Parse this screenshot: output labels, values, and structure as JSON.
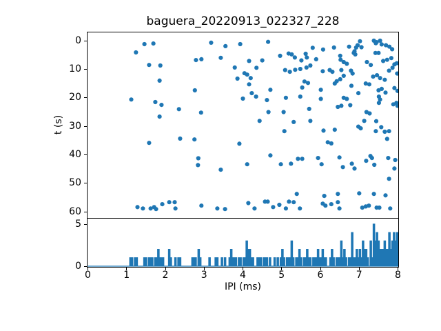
{
  "figure": {
    "title": "baguera_20220913_022327_228",
    "background_color": "#ffffff",
    "accent_color": "#1f77b4"
  },
  "chart_data": [
    {
      "type": "scatter",
      "title": "baguera_20220913_022327_228",
      "xlabel": "IPI (ms)",
      "ylabel": "t (s)",
      "xlim": [
        0,
        8
      ],
      "ylim_top_to_bottom": [
        -2.9,
        62.1
      ],
      "y_axis_inverted": true,
      "x_ticks": [
        0,
        1,
        2,
        3,
        4,
        5,
        6,
        7,
        8
      ],
      "x_tick_labels_shown": false,
      "y_ticks": [
        0,
        10,
        20,
        30,
        40,
        50,
        60
      ],
      "grid": false,
      "legend": "none",
      "marker": "dot",
      "marker_color": "#1f77b4",
      "points_x_is_ipi_ms_y_is_t_s": true,
      "points": [
        [
          1.46,
          1.2
        ],
        [
          1.69,
          1.0
        ],
        [
          3.18,
          0.7
        ],
        [
          3.55,
          1.9
        ],
        [
          3.93,
          1.2
        ],
        [
          1.24,
          4.1
        ],
        [
          3.43,
          6.0
        ],
        [
          2.93,
          6.5
        ],
        [
          2.79,
          6.8
        ],
        [
          1.58,
          8.5
        ],
        [
          1.87,
          8.7
        ],
        [
          3.79,
          9.4
        ],
        [
          4.04,
          11.4
        ],
        [
          3.86,
          13.3
        ],
        [
          1.85,
          14.0
        ],
        [
          2.76,
          17.4
        ],
        [
          4.0,
          20.3
        ],
        [
          1.12,
          20.6
        ],
        [
          1.74,
          21.5
        ],
        [
          1.9,
          22.5
        ],
        [
          2.35,
          24.0
        ],
        [
          2.92,
          25.2
        ],
        [
          1.85,
          26.6
        ],
        [
          4.65,
          0.4
        ],
        [
          5.8,
          2.5
        ],
        [
          6.07,
          3.1
        ],
        [
          6.35,
          2.4
        ],
        [
          5.18,
          4.5
        ],
        [
          5.26,
          4.8
        ],
        [
          4.96,
          5.3
        ],
        [
          5.34,
          5.9
        ],
        [
          5.62,
          4.6
        ],
        [
          5.65,
          5.9
        ],
        [
          5.51,
          6.9
        ],
        [
          5.89,
          6.5
        ],
        [
          6.52,
          6.7
        ],
        [
          6.6,
          7.5
        ],
        [
          6.51,
          5.3
        ],
        [
          4.16,
          7.1
        ],
        [
          4.5,
          6.9
        ],
        [
          4.35,
          9.5
        ],
        [
          5.09,
          10.3
        ],
        [
          5.21,
          10.9
        ],
        [
          5.35,
          10.2
        ],
        [
          5.48,
          9.9
        ],
        [
          5.64,
          9.4
        ],
        [
          5.74,
          8.7
        ],
        [
          6.06,
          10.7
        ],
        [
          6.24,
          10.3
        ],
        [
          6.31,
          10.9
        ],
        [
          6.54,
          10.3
        ],
        [
          4.11,
          11.9
        ],
        [
          4.2,
          13.1
        ],
        [
          6.42,
          14.2
        ],
        [
          6.51,
          13.5
        ],
        [
          6.6,
          12.3
        ],
        [
          5.59,
          14.3
        ],
        [
          5.68,
          14.8
        ],
        [
          4.16,
          15.3
        ],
        [
          4.71,
          17.2
        ],
        [
          4.23,
          18.4
        ],
        [
          4.34,
          19.6
        ],
        [
          4.62,
          20.8
        ],
        [
          5.53,
          16.4
        ],
        [
          6.01,
          17.2
        ],
        [
          6.37,
          15.0
        ],
        [
          5.11,
          20.0
        ],
        [
          5.48,
          19.6
        ],
        [
          6.01,
          20.4
        ],
        [
          6.6,
          20.0
        ],
        [
          6.54,
          22.8
        ],
        [
          6.45,
          23.2
        ],
        [
          4.66,
          25.0
        ],
        [
          5.05,
          25.0
        ],
        [
          5.71,
          23.9
        ],
        [
          5.74,
          28.1
        ],
        [
          4.43,
          28.1
        ],
        [
          5.31,
          28.5
        ],
        [
          6.74,
          2.1
        ],
        [
          6.92,
          2.4
        ],
        [
          6.96,
          1.6
        ],
        [
          7.02,
          0.2
        ],
        [
          7.06,
          2.3
        ],
        [
          7.38,
          0.0
        ],
        [
          7.45,
          0.5
        ],
        [
          7.54,
          0.0
        ],
        [
          7.58,
          1.3
        ],
        [
          7.69,
          1.6
        ],
        [
          7.78,
          2.1
        ],
        [
          7.43,
          0.9
        ],
        [
          7.85,
          3.0
        ],
        [
          6.86,
          4.3
        ],
        [
          6.9,
          4.8
        ],
        [
          7.42,
          4.3
        ],
        [
          6.88,
          3.7
        ],
        [
          7.5,
          4.3
        ],
        [
          6.68,
          8.1
        ],
        [
          6.79,
          10.5
        ],
        [
          6.83,
          11.5
        ],
        [
          7.2,
          7.5
        ],
        [
          7.3,
          8.5
        ],
        [
          7.62,
          7.1
        ],
        [
          7.72,
          6.7
        ],
        [
          7.83,
          6.1
        ],
        [
          7.91,
          8.3
        ],
        [
          7.97,
          7.9
        ],
        [
          7.36,
          12.6
        ],
        [
          7.46,
          12.1
        ],
        [
          7.54,
          13.1
        ],
        [
          7.66,
          13.7
        ],
        [
          7.77,
          10.5
        ],
        [
          7.86,
          9.5
        ],
        [
          7.98,
          11.5
        ],
        [
          7.17,
          15.0
        ],
        [
          7.26,
          15.3
        ],
        [
          6.8,
          15.8
        ],
        [
          6.68,
          20.4
        ],
        [
          6.98,
          18.4
        ],
        [
          7.5,
          17.4
        ],
        [
          7.58,
          16.9
        ],
        [
          7.68,
          18.2
        ],
        [
          7.51,
          19.6
        ],
        [
          7.91,
          16.6
        ],
        [
          7.99,
          17.6
        ],
        [
          6.77,
          22.6
        ],
        [
          7.54,
          20.6
        ],
        [
          7.51,
          21.8
        ],
        [
          7.88,
          22.3
        ],
        [
          7.96,
          21.8
        ],
        [
          7.99,
          22.8
        ],
        [
          7.19,
          25.0
        ],
        [
          7.27,
          25.5
        ],
        [
          7.13,
          28.1
        ],
        [
          7.44,
          28.2
        ],
        [
          7.57,
          30.3
        ],
        [
          6.98,
          30.1
        ],
        [
          1.58,
          35.8
        ],
        [
          2.38,
          34.3
        ],
        [
          2.75,
          34.6
        ],
        [
          3.91,
          36.1
        ],
        [
          2.85,
          41.2
        ],
        [
          2.84,
          43.6
        ],
        [
          3.43,
          45.2
        ],
        [
          1.28,
          58.3
        ],
        [
          1.42,
          58.8
        ],
        [
          1.62,
          58.8
        ],
        [
          1.71,
          58.3
        ],
        [
          1.76,
          59.0
        ],
        [
          1.92,
          57.3
        ],
        [
          2.1,
          56.6
        ],
        [
          2.24,
          56.6
        ],
        [
          2.26,
          58.8
        ],
        [
          2.93,
          57.8
        ],
        [
          3.34,
          58.8
        ],
        [
          3.54,
          59.0
        ],
        [
          5.07,
          31.7
        ],
        [
          6.08,
          31.5
        ],
        [
          6.37,
          31.2
        ],
        [
          7.04,
          30.7
        ],
        [
          7.43,
          31.7
        ],
        [
          7.66,
          31.9
        ],
        [
          7.77,
          31.7
        ],
        [
          6.19,
          35.6
        ],
        [
          6.28,
          36.0
        ],
        [
          7.72,
          34.4
        ],
        [
          4.71,
          40.2
        ],
        [
          4.98,
          43.3
        ],
        [
          5.24,
          43.1
        ],
        [
          5.42,
          41.4
        ],
        [
          5.53,
          41.4
        ],
        [
          5.94,
          41.1
        ],
        [
          6.03,
          43.3
        ],
        [
          4.11,
          43.3
        ],
        [
          6.49,
          40.9
        ],
        [
          6.58,
          44.3
        ],
        [
          6.81,
          43.1
        ],
        [
          6.88,
          44.8
        ],
        [
          7.18,
          42.1
        ],
        [
          7.29,
          40.4
        ],
        [
          7.33,
          41.1
        ],
        [
          7.39,
          43.5
        ],
        [
          7.75,
          41.1
        ],
        [
          7.93,
          41.8
        ],
        [
          7.91,
          44.8
        ],
        [
          7.77,
          48.4
        ],
        [
          5.39,
          53.7
        ],
        [
          6.1,
          54.4
        ],
        [
          6.45,
          53.7
        ],
        [
          7.0,
          53.5
        ],
        [
          7.38,
          53.7
        ],
        [
          7.68,
          54.2
        ],
        [
          4.14,
          56.9
        ],
        [
          4.3,
          58.8
        ],
        [
          4.57,
          56.4
        ],
        [
          4.64,
          56.4
        ],
        [
          4.78,
          58.3
        ],
        [
          4.94,
          57.5
        ],
        [
          5.11,
          58.8
        ],
        [
          5.19,
          56.4
        ],
        [
          5.31,
          56.6
        ],
        [
          5.47,
          58.8
        ],
        [
          6.06,
          57.1
        ],
        [
          6.13,
          57.8
        ],
        [
          6.28,
          57.3
        ],
        [
          6.45,
          56.6
        ],
        [
          6.49,
          58.8
        ],
        [
          7.08,
          58.5
        ],
        [
          7.17,
          58.1
        ],
        [
          7.25,
          57.8
        ],
        [
          7.45,
          58.5
        ],
        [
          7.52,
          58.5
        ],
        [
          7.8,
          58.8
        ]
      ]
    },
    {
      "type": "bar",
      "subtype": "histogram-step-filled",
      "xlabel": "IPI (ms)",
      "ylabel": "",
      "xlim": [
        0,
        8
      ],
      "ylim": [
        0,
        5.66
      ],
      "x_ticks": [
        0,
        1,
        2,
        3,
        4,
        5,
        6,
        7,
        8
      ],
      "y_ticks": [
        0,
        5
      ],
      "bin_width": 0.04,
      "x_start": 0,
      "fill_color": "#1f77b4",
      "line_color": "#1f77b4",
      "counts": [
        0,
        0,
        0,
        0,
        0,
        0,
        0,
        0,
        0,
        0,
        0,
        0,
        0,
        0,
        0,
        0,
        0,
        0,
        0,
        0,
        0,
        0,
        0,
        0,
        0,
        0,
        0,
        1,
        1,
        0,
        1,
        1,
        0,
        0,
        0,
        0,
        1,
        1,
        0,
        1,
        1,
        1,
        0,
        1,
        1,
        2,
        1,
        1,
        1,
        0,
        0,
        0,
        2,
        1,
        0,
        0,
        1,
        0,
        1,
        1,
        0,
        0,
        0,
        0,
        0,
        0,
        0,
        1,
        1,
        1,
        0,
        2,
        1,
        0,
        0,
        0,
        0,
        0,
        1,
        0,
        0,
        0,
        1,
        1,
        0,
        0,
        1,
        0,
        1,
        0,
        0,
        1,
        2,
        1,
        1,
        1,
        0,
        1,
        1,
        0,
        1,
        1,
        3,
        2,
        2,
        1,
        1,
        0,
        0,
        1,
        1,
        1,
        0,
        1,
        1,
        1,
        0,
        1,
        0,
        0,
        1,
        0,
        1,
        0,
        1,
        2,
        1,
        0,
        1,
        1,
        1,
        3,
        1,
        0,
        1,
        1,
        2,
        1,
        0,
        1,
        1,
        2,
        1,
        1,
        0,
        1,
        1,
        1,
        2,
        1,
        1,
        2,
        1,
        1,
        0,
        0,
        1,
        2,
        1,
        0,
        1,
        1,
        1,
        3,
        1,
        2,
        1,
        0,
        1,
        1,
        4,
        1,
        1,
        2,
        1,
        2,
        1,
        3,
        2,
        2,
        1,
        0,
        3,
        1,
        5,
        3,
        4,
        3,
        2,
        2,
        2,
        3,
        2,
        2,
        4,
        2,
        3,
        4,
        3,
        4
      ]
    }
  ]
}
